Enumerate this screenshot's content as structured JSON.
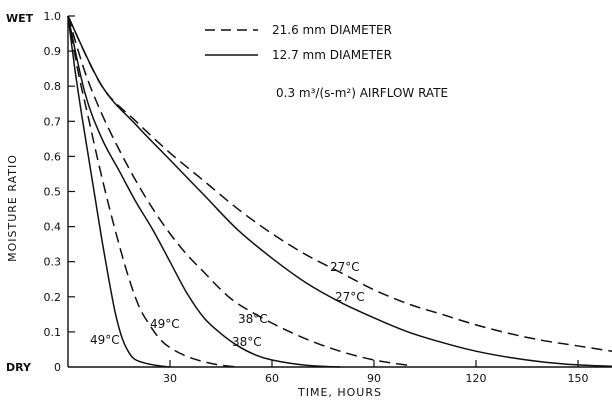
{
  "chart_data": {
    "type": "line",
    "title": "",
    "xlabel": "TIME, HOURS",
    "ylabel": "MOISTURE RATIO",
    "xlim": [
      0,
      160
    ],
    "ylim": [
      0,
      1.0
    ],
    "x_ticks": [
      "30",
      "60",
      "90",
      "120",
      "150"
    ],
    "y_ticks": [
      "0.1",
      "0.2",
      "0.3",
      "0.4",
      "0.5",
      "0.6",
      "0.7",
      "0.8",
      "0.9",
      "1.0"
    ],
    "y_origin_label": "0",
    "y_end_labels": {
      "top": "WET",
      "bottom": "DRY"
    },
    "grid": false,
    "legend": [
      {
        "label": "21.6 mm DIAMETER",
        "style": "dashed"
      },
      {
        "label": "12.7 mm DIAMETER",
        "style": "solid"
      }
    ],
    "note": "0.3 m³/(s-m²) AIRFLOW RATE",
    "series": [
      {
        "diameter": "21.6 mm",
        "style": "dashed",
        "label": "27°C",
        "x": [
          0,
          10,
          20,
          30,
          40,
          50,
          60,
          70,
          80,
          90,
          100,
          110,
          120,
          130,
          140,
          150,
          160
        ],
        "y": [
          1.0,
          0.8,
          0.7,
          0.61,
          0.53,
          0.45,
          0.38,
          0.32,
          0.27,
          0.22,
          0.18,
          0.15,
          0.12,
          0.095,
          0.075,
          0.06,
          0.045
        ]
      },
      {
        "diameter": "12.7 mm",
        "style": "solid",
        "label": "27°C",
        "x": [
          0,
          10,
          20,
          30,
          40,
          50,
          60,
          70,
          80,
          90,
          100,
          110,
          120,
          130,
          140,
          150,
          160
        ],
        "y": [
          1.0,
          0.8,
          0.69,
          0.59,
          0.49,
          0.39,
          0.31,
          0.24,
          0.185,
          0.14,
          0.1,
          0.07,
          0.045,
          0.027,
          0.014,
          0.006,
          0.002
        ]
      },
      {
        "diameter": "21.6 mm",
        "style": "dashed",
        "label": "38°C",
        "x": [
          0,
          5,
          10,
          15,
          20,
          25,
          30,
          35,
          40,
          45,
          50,
          60,
          70,
          80,
          90,
          100
        ],
        "y": [
          1.0,
          0.84,
          0.72,
          0.62,
          0.53,
          0.45,
          0.38,
          0.32,
          0.27,
          0.22,
          0.18,
          0.125,
          0.08,
          0.045,
          0.02,
          0.005
        ]
      },
      {
        "diameter": "12.7 mm",
        "style": "solid",
        "label": "38°C",
        "x": [
          0,
          5,
          10,
          15,
          20,
          25,
          30,
          35,
          40,
          45,
          50,
          55,
          60,
          70,
          80
        ],
        "y": [
          1.0,
          0.78,
          0.65,
          0.56,
          0.47,
          0.39,
          0.3,
          0.21,
          0.14,
          0.095,
          0.06,
          0.035,
          0.02,
          0.005,
          0.0
        ]
      },
      {
        "diameter": "21.6 mm",
        "style": "dashed",
        "label": "49°C",
        "x": [
          0,
          3,
          6,
          9,
          12,
          15,
          18,
          21,
          24,
          27,
          30,
          35,
          40,
          45,
          50
        ],
        "y": [
          1.0,
          0.84,
          0.71,
          0.58,
          0.46,
          0.35,
          0.25,
          0.17,
          0.12,
          0.08,
          0.055,
          0.03,
          0.015,
          0.005,
          0.0
        ]
      },
      {
        "diameter": "12.7 mm",
        "style": "solid",
        "label": "49°C",
        "x": [
          0,
          2,
          4,
          6,
          8,
          10,
          12,
          14,
          16,
          18,
          20,
          24,
          28,
          30
        ],
        "y": [
          1.0,
          0.85,
          0.72,
          0.6,
          0.48,
          0.36,
          0.25,
          0.15,
          0.08,
          0.04,
          0.02,
          0.008,
          0.002,
          0.0
        ]
      }
    ]
  }
}
